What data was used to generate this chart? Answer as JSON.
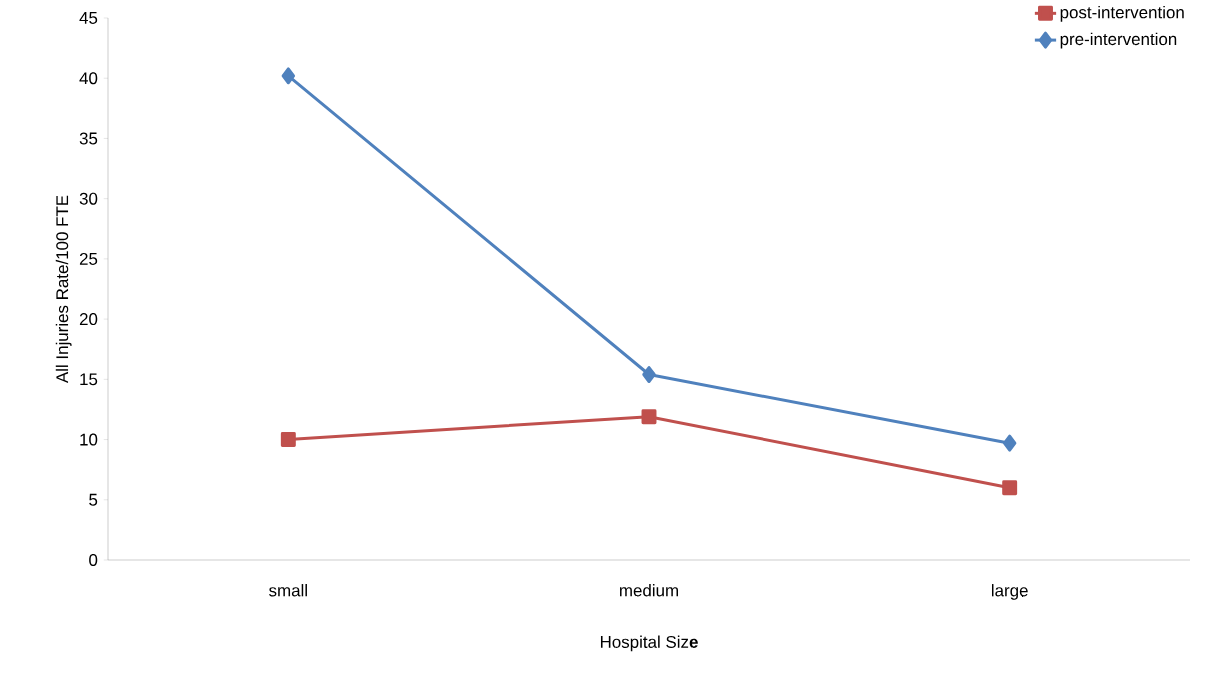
{
  "chart_data": {
    "type": "line",
    "xlabel": "Hospital Siz**e**",
    "ylabel": "All Injuries Rate/100 FTE",
    "categories": [
      "small",
      "medium",
      "large"
    ],
    "series": [
      {
        "name": "post-intervention",
        "color": "#c0504d",
        "marker": "square",
        "values": [
          10.0,
          11.9,
          6.0
        ]
      },
      {
        "name": "pre-intervention",
        "color": "#4f81bd",
        "marker": "diamond",
        "values": [
          40.2,
          15.4,
          9.7
        ]
      }
    ],
    "ylim": [
      0,
      45
    ],
    "yticks": [
      0,
      5,
      10,
      15,
      20,
      25,
      30,
      35,
      40,
      45
    ],
    "grid": false,
    "legend": "top right",
    "line_style": "solid"
  }
}
